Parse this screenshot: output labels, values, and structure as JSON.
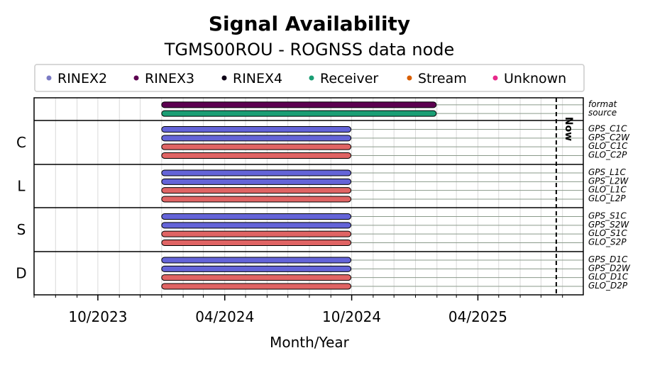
{
  "chart_data": {
    "type": "timeline",
    "title": "Signal Availability",
    "subtitle": "TGMS00ROU - ROGNSS data node",
    "xlabel": "Month/Year",
    "xlim": [
      "2023-07-01",
      "2025-08-31"
    ],
    "x_ticks": [
      {
        "date": "2023-10-01",
        "label": "10/2023"
      },
      {
        "date": "2024-04-01",
        "label": "04/2024"
      },
      {
        "date": "2024-10-01",
        "label": "10/2024"
      },
      {
        "date": "2025-04-01",
        "label": "04/2025"
      }
    ],
    "now": {
      "date": "2025-07-23",
      "label": "Now"
    },
    "legend": [
      {
        "name": "RINEX2",
        "color": "#7b7bc4"
      },
      {
        "name": "RINEX3",
        "color": "#5c0050"
      },
      {
        "name": "RINEX4",
        "color": "#0d0016"
      },
      {
        "name": "Receiver",
        "color": "#1a9e74"
      },
      {
        "name": "Stream",
        "color": "#d95f02"
      },
      {
        "name": "Unknown",
        "color": "#e7298a"
      }
    ],
    "legend_position": "top",
    "grid": true,
    "groups": [
      {
        "label": "",
        "rows": [
          {
            "label": "format",
            "start": "2024-01-01",
            "end": "2025-01-31",
            "color": "#5c0050"
          },
          {
            "label": "source",
            "start": "2024-01-01",
            "end": "2025-01-31",
            "color": "#1a9e74"
          }
        ]
      },
      {
        "label": "C",
        "rows": [
          {
            "label": "GPS_C1C",
            "start": "2024-01-01",
            "end": "2024-09-30",
            "color": "#6464d8"
          },
          {
            "label": "GPS_C2W",
            "start": "2024-01-01",
            "end": "2024-09-30",
            "color": "#6464d8"
          },
          {
            "label": "GLO_C1C",
            "start": "2024-01-01",
            "end": "2024-09-30",
            "color": "#e06464"
          },
          {
            "label": "GLO_C2P",
            "start": "2024-01-01",
            "end": "2024-09-30",
            "color": "#e06464"
          }
        ]
      },
      {
        "label": "L",
        "rows": [
          {
            "label": "GPS_L1C",
            "start": "2024-01-01",
            "end": "2024-09-30",
            "color": "#6464d8"
          },
          {
            "label": "GPS_L2W",
            "start": "2024-01-01",
            "end": "2024-09-30",
            "color": "#6464d8"
          },
          {
            "label": "GLO_L1C",
            "start": "2024-01-01",
            "end": "2024-09-30",
            "color": "#e06464"
          },
          {
            "label": "GLO_L2P",
            "start": "2024-01-01",
            "end": "2024-09-30",
            "color": "#e06464"
          }
        ]
      },
      {
        "label": "S",
        "rows": [
          {
            "label": "GPS_S1C",
            "start": "2024-01-01",
            "end": "2024-09-30",
            "color": "#6464d8"
          },
          {
            "label": "GPS_S2W",
            "start": "2024-01-01",
            "end": "2024-09-30",
            "color": "#6464d8"
          },
          {
            "label": "GLO_S1C",
            "start": "2024-01-01",
            "end": "2024-09-30",
            "color": "#e06464"
          },
          {
            "label": "GLO_S2P",
            "start": "2024-01-01",
            "end": "2024-09-30",
            "color": "#e06464"
          }
        ]
      },
      {
        "label": "D",
        "rows": [
          {
            "label": "GPS_D1C",
            "start": "2024-01-01",
            "end": "2024-09-30",
            "color": "#6464d8"
          },
          {
            "label": "GPS_D2W",
            "start": "2024-01-01",
            "end": "2024-09-30",
            "color": "#6464d8"
          },
          {
            "label": "GLO_D1C",
            "start": "2024-01-01",
            "end": "2024-09-30",
            "color": "#e06464"
          },
          {
            "label": "GLO_D2P",
            "start": "2024-01-01",
            "end": "2024-09-30",
            "color": "#e06464"
          }
        ]
      }
    ]
  }
}
